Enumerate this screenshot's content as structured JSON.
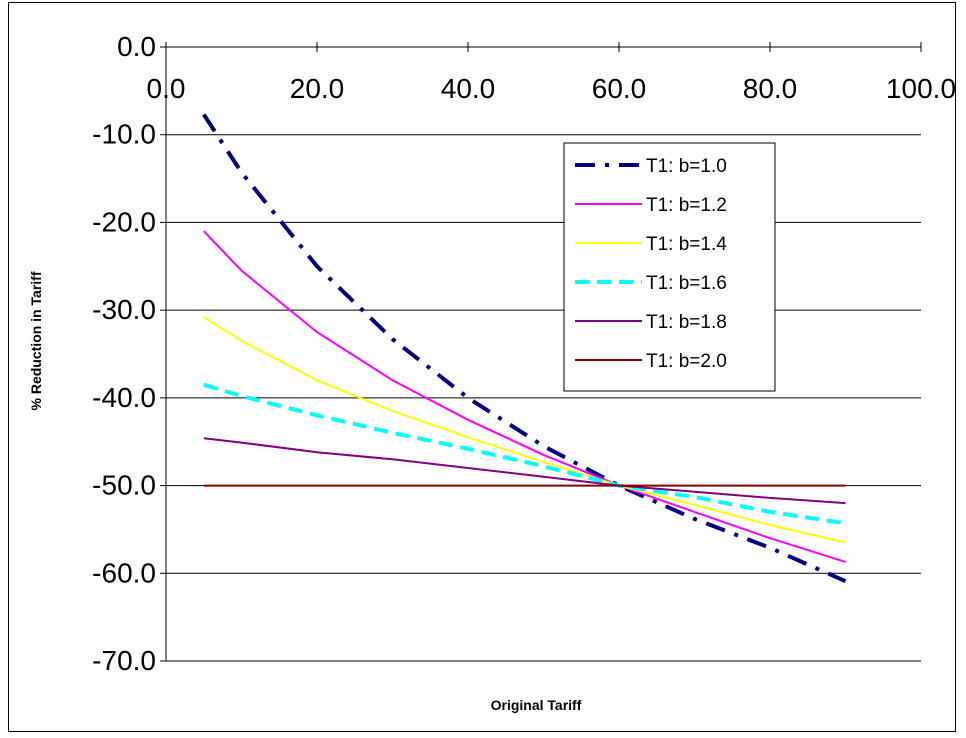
{
  "chart_data": {
    "type": "line",
    "title": "",
    "xlabel": "Original Tariff",
    "ylabel": "% Reduction in Tariff",
    "xlim": [
      0,
      100
    ],
    "ylim": [
      -70,
      0
    ],
    "x_ticks": [
      "0.0",
      "20.0",
      "40.0",
      "60.0",
      "80.0",
      "100.0"
    ],
    "y_ticks": [
      "0.0",
      "-10.0",
      "-20.0",
      "-30.0",
      "-40.0",
      "-50.0",
      "-60.0",
      "-70.0"
    ],
    "grid": "horizontal",
    "x_axis_position": "top",
    "legend_position": "top-right",
    "x": [
      5,
      10,
      20,
      30,
      40,
      50,
      60,
      70,
      80,
      90
    ],
    "series": [
      {
        "name": "T1: b=1.0",
        "color": "#000080",
        "style": "dash-dot",
        "values": [
          -7.7,
          -14.3,
          -25.0,
          -33.3,
          -40.0,
          -45.5,
          -50.0,
          -53.8,
          -57.1,
          -60.9
        ]
      },
      {
        "name": "T1: b=1.2",
        "color": "#ff00ff",
        "style": "solid",
        "values": [
          -21.0,
          -25.5,
          -32.5,
          -38.0,
          -42.5,
          -46.5,
          -50.0,
          -53.0,
          -56.0,
          -58.7
        ]
      },
      {
        "name": "T1: b=1.4",
        "color": "#ffff00",
        "style": "solid",
        "values": [
          -30.8,
          -33.5,
          -38.0,
          -41.5,
          -44.5,
          -47.3,
          -50.0,
          -52.2,
          -54.5,
          -56.5
        ]
      },
      {
        "name": "T1: b=1.6",
        "color": "#00ffff",
        "style": "dash",
        "values": [
          -38.5,
          -39.8,
          -42.0,
          -44.0,
          -45.8,
          -47.8,
          -50.0,
          -51.3,
          -53.0,
          -54.3
        ]
      },
      {
        "name": "T1: b=1.8",
        "color": "#800080",
        "style": "solid",
        "values": [
          -44.6,
          -45.1,
          -46.2,
          -47.0,
          -48.0,
          -49.0,
          -50.0,
          -50.7,
          -51.4,
          -52.0
        ]
      },
      {
        "name": "T1: b=2.0",
        "color": "#800000",
        "style": "solid",
        "values": [
          -50.0,
          -50.0,
          -50.0,
          -50.0,
          -50.0,
          -50.0,
          -50.0,
          -50.0,
          -50.0,
          -50.0
        ]
      }
    ]
  }
}
